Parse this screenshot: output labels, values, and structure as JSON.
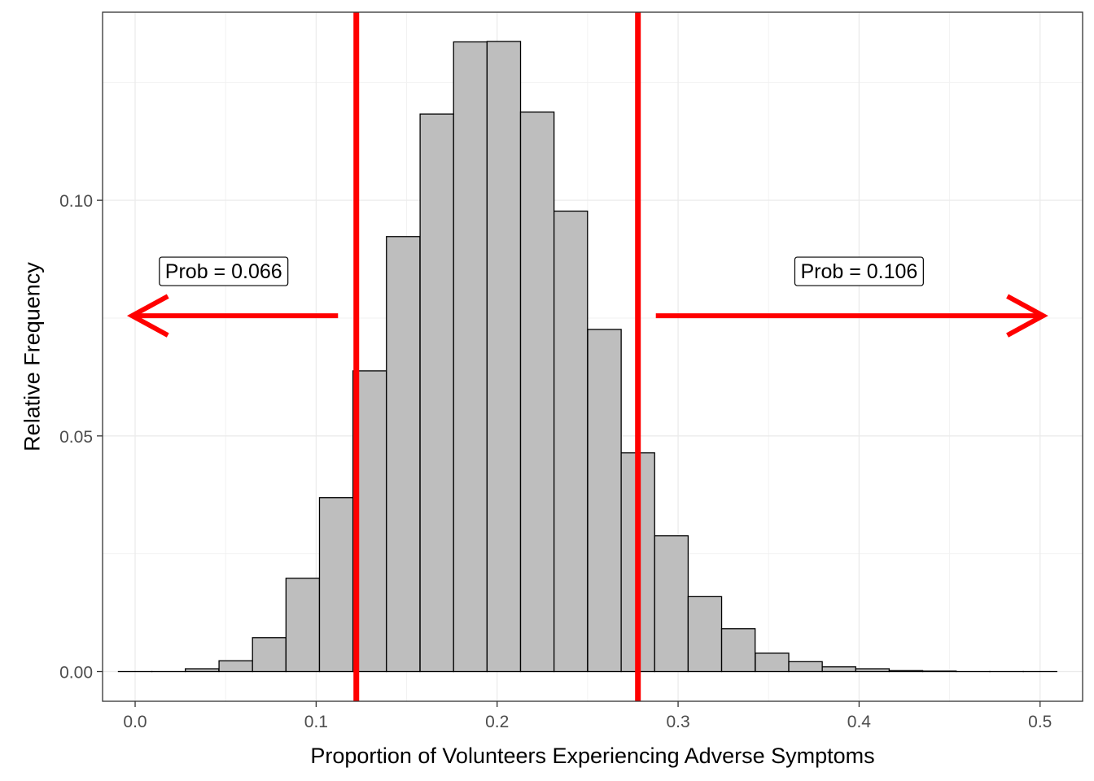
{
  "chart_data": {
    "type": "bar",
    "xlabel": "Proportion of Volunteers Experiencing Adverse Symptoms",
    "ylabel": "Relative Frequency",
    "xlim": [
      -0.018,
      0.5235
    ],
    "ylim": [
      -0.0063,
      0.1399
    ],
    "grid": true,
    "x_ticks": [
      {
        "value": 0.0,
        "label": "0.0"
      },
      {
        "value": 0.1,
        "label": "0.1"
      },
      {
        "value": 0.2,
        "label": "0.2"
      },
      {
        "value": 0.3,
        "label": "0.3"
      },
      {
        "value": 0.4,
        "label": "0.4"
      },
      {
        "value": 0.5,
        "label": "0.5"
      }
    ],
    "y_ticks": [
      {
        "value": 0.0,
        "label": "0.00"
      },
      {
        "value": 0.05,
        "label": "0.05"
      },
      {
        "value": 0.1,
        "label": "0.10"
      }
    ],
    "bar_width": 0.0185,
    "bin_centers": [
      0.0,
      0.0185,
      0.037,
      0.0556,
      0.0741,
      0.0926,
      0.1111,
      0.1296,
      0.1481,
      0.1667,
      0.1852,
      0.2037,
      0.2222,
      0.2407,
      0.2593,
      0.2778,
      0.2963,
      0.3148,
      0.3333,
      0.3519,
      0.3704,
      0.3889,
      0.4074,
      0.4259,
      0.4444,
      0.463,
      0.4815,
      0.5
    ],
    "values": [
      0.0,
      0.0,
      0.0006,
      0.0023,
      0.0072,
      0.0198,
      0.0369,
      0.0638,
      0.0923,
      0.1183,
      0.1336,
      0.1337,
      0.1187,
      0.0977,
      0.0726,
      0.0464,
      0.0288,
      0.0159,
      0.0091,
      0.0039,
      0.0021,
      0.001,
      0.0006,
      0.0002,
      0.0001,
      0.0,
      0.0,
      0.0
    ],
    "bar_fill": "#bebebe",
    "bar_stroke": "#000000",
    "cutoffs": [
      0.1222,
      0.2778
    ],
    "cutoff_color": "#ff0000",
    "arrows": [
      {
        "from": 0.1121,
        "to": -0.0017,
        "y": 0.0755
      },
      {
        "from": 0.2877,
        "to": 0.5017,
        "y": 0.0755
      }
    ],
    "annotations": [
      {
        "label": "Prob = 0.066",
        "x": 0.0489,
        "y": 0.085
      },
      {
        "label": "Prob = 0.106",
        "x": 0.4,
        "y": 0.085
      }
    ]
  }
}
